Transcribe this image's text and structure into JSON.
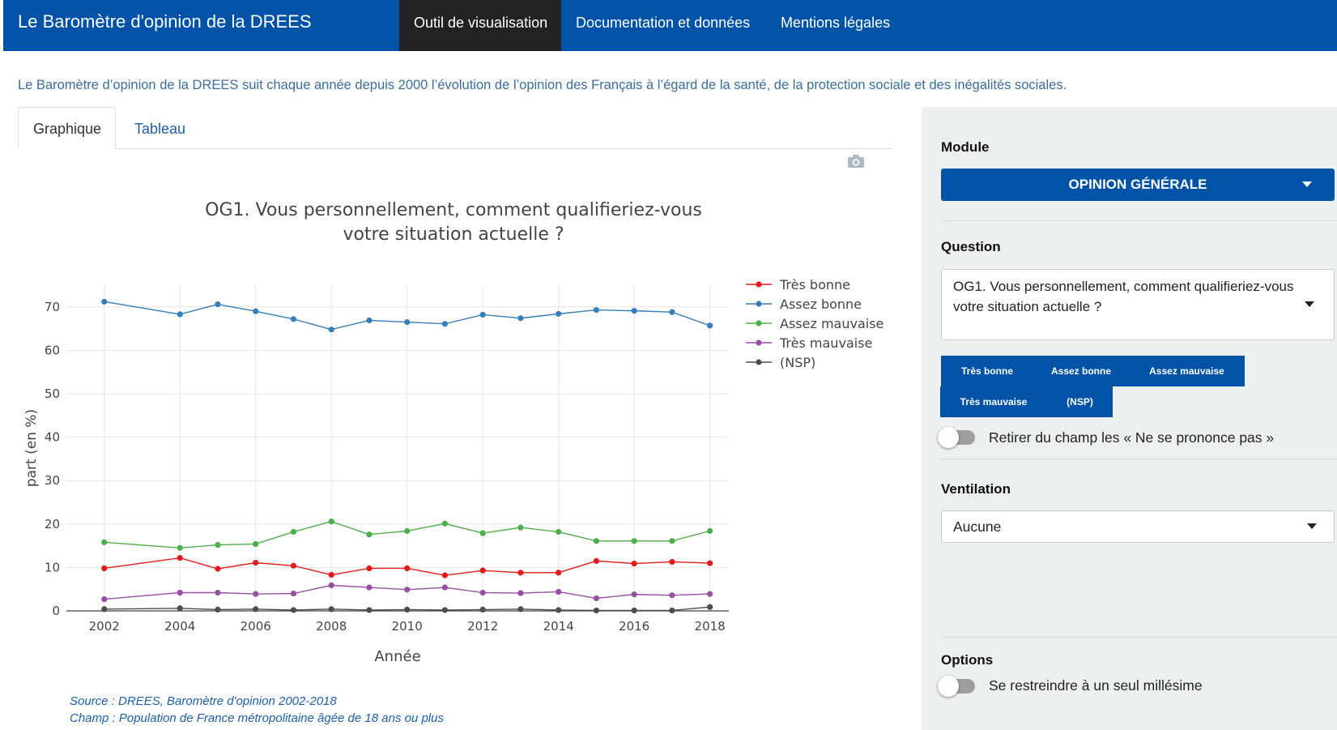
{
  "navbar": {
    "brand": "Le Baromètre d'opinion de la DREES",
    "items": [
      {
        "label": "Outil de visualisation",
        "active": true
      },
      {
        "label": "Documentation et données",
        "active": false
      },
      {
        "label": "Mentions légales",
        "active": false
      }
    ]
  },
  "intro": "Le Baromètre d’opinion de la DREES suit chaque année depuis 2000 l’évolution de l’opinion des Français à l’égard de la santé, de la protection sociale et des inégalités sociales.",
  "tabs": [
    {
      "label": "Graphique",
      "active": true
    },
    {
      "label": "Tableau",
      "active": false
    }
  ],
  "toolbar": {
    "icon": "camera-icon"
  },
  "chart_data": {
    "type": "line",
    "title_line1": "OG1. Vous personnellement, comment qualifieriez-vous",
    "title_line2": "votre situation actuelle ?",
    "xlabel": "Année",
    "ylabel": "part (en %)",
    "xlim": [
      2001,
      2018.5
    ],
    "ylim": [
      0,
      75
    ],
    "xticks": [
      "2002",
      "2004",
      "2006",
      "2008",
      "2010",
      "2012",
      "2014",
      "2016",
      "2018"
    ],
    "yticks": [
      "0",
      "10",
      "20",
      "30",
      "40",
      "50",
      "60",
      "70"
    ],
    "grid": true,
    "legend_position": "right",
    "x": [
      2002,
      2004,
      2005,
      2006,
      2007,
      2008,
      2009,
      2010,
      2011,
      2012,
      2013,
      2014,
      2015,
      2016,
      2017,
      2018
    ],
    "series": [
      {
        "name": "Très bonne",
        "color": "#e31a1c",
        "values": [
          9.8,
          12.2,
          9.7,
          11.1,
          10.4,
          8.3,
          9.8,
          9.8,
          8.2,
          9.3,
          8.8,
          8.8,
          11.5,
          10.9,
          11.3,
          11.0
        ]
      },
      {
        "name": "Assez bonne",
        "color": "#377eb8",
        "values": [
          71.2,
          68.3,
          70.6,
          69.0,
          67.2,
          64.8,
          66.9,
          66.5,
          66.1,
          68.2,
          67.4,
          68.4,
          69.3,
          69.1,
          68.8,
          65.7
        ]
      },
      {
        "name": "Assez mauvaise",
        "color": "#4daf4a",
        "values": [
          15.8,
          14.5,
          15.2,
          15.4,
          18.2,
          20.6,
          17.6,
          18.4,
          20.1,
          17.9,
          19.2,
          18.2,
          16.1,
          16.1,
          16.1,
          18.4
        ]
      },
      {
        "name": "Très mauvaise",
        "color": "#984ea3",
        "values": [
          2.7,
          4.2,
          4.2,
          3.9,
          4.0,
          5.9,
          5.4,
          4.9,
          5.4,
          4.2,
          4.1,
          4.4,
          2.9,
          3.8,
          3.6,
          3.9
        ]
      },
      {
        "name": "(NSP)",
        "color": "#4d4d4d",
        "values": [
          0.4,
          0.6,
          0.3,
          0.4,
          0.2,
          0.4,
          0.2,
          0.3,
          0.2,
          0.3,
          0.4,
          0.2,
          0.1,
          0.1,
          0.1,
          0.9
        ]
      }
    ]
  },
  "source": {
    "line1": "Source : DREES, Baromètre d'opinion 2002-2018",
    "line2": "Champ : Population de France métropolitaine âgée de 18 ans ou plus"
  },
  "panel": {
    "module_label": "Module",
    "module_value": "OPINION GÉNÉRALE",
    "question_label": "Question",
    "question_value": "OG1. Vous personnellement, comment qualifieriez-vous votre situation actuelle ?",
    "categories": [
      "Très bonne",
      "Assez bonne",
      "Assez mauvaise",
      "Très mauvaise",
      "(NSP)"
    ],
    "nsp_toggle_label": "Retirer du champ les « Ne se prononce pas »",
    "ventilation_label": "Ventilation",
    "ventilation_value": "Aucune",
    "options_label": "Options",
    "millesime_toggle_label": "Se restreindre à un seul millésime"
  }
}
